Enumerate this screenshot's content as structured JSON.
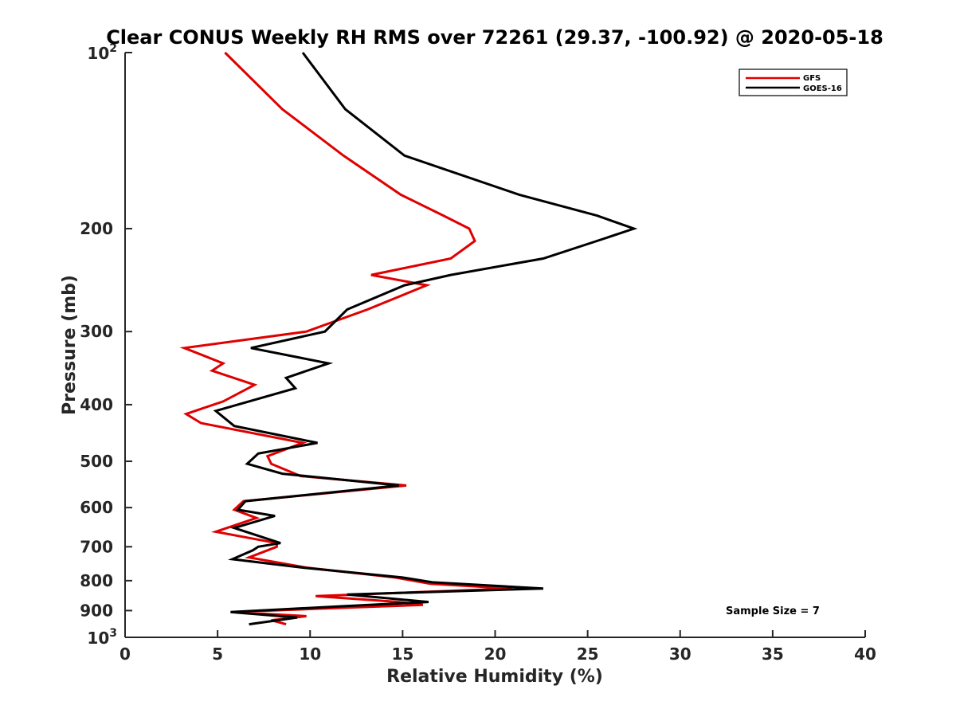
{
  "chart_data": {
    "type": "line",
    "title": "Clear CONUS Weekly RH RMS over 72261 (29.37, -100.92) @ 2020-05-18",
    "xlabel": "Relative Humidity (%)",
    "ylabel": "Pressure (mb)",
    "xlim": [
      0,
      40
    ],
    "ylim": [
      100,
      1000
    ],
    "y_scale": "log",
    "y_reversed": true,
    "grid": false,
    "legend_position": "top-right",
    "x_ticks": [
      "0",
      "5",
      "10",
      "15",
      "20",
      "25",
      "30",
      "35",
      "40"
    ],
    "y_ticks": [
      {
        "value": 100,
        "base": "10",
        "exp": "2"
      },
      {
        "value": 200,
        "label": "200"
      },
      {
        "value": 300,
        "label": "300"
      },
      {
        "value": 400,
        "label": "400"
      },
      {
        "value": 500,
        "label": "500"
      },
      {
        "value": 600,
        "label": "600"
      },
      {
        "value": 700,
        "label": "700"
      },
      {
        "value": 800,
        "label": "800"
      },
      {
        "value": 900,
        "label": "900"
      },
      {
        "value": 1000,
        "base": "10",
        "exp": "3"
      }
    ],
    "annotation": "Sample Size = 7",
    "series": [
      {
        "name": "GFS",
        "color": "#e00000",
        "points": [
          [
            5.4,
            100
          ],
          [
            8.5,
            125
          ],
          [
            11.8,
            150
          ],
          [
            14.9,
            175
          ],
          [
            17.2,
            190
          ],
          [
            18.6,
            200
          ],
          [
            18.9,
            210
          ],
          [
            17.6,
            225
          ],
          [
            13.3,
            240
          ],
          [
            16.3,
            250
          ],
          [
            13.1,
            275
          ],
          [
            9.8,
            300
          ],
          [
            3.2,
            320
          ],
          [
            5.3,
            340
          ],
          [
            4.7,
            350
          ],
          [
            7.0,
            370
          ],
          [
            5.3,
            395
          ],
          [
            3.3,
            415
          ],
          [
            4.1,
            430
          ],
          [
            9.6,
            465
          ],
          [
            7.7,
            490
          ],
          [
            7.9,
            505
          ],
          [
            9.5,
            530
          ],
          [
            15.2,
            550
          ],
          [
            6.4,
            585
          ],
          [
            5.9,
            605
          ],
          [
            7.1,
            625
          ],
          [
            4.9,
            660
          ],
          [
            8.2,
            690
          ],
          [
            8.2,
            700
          ],
          [
            6.7,
            730
          ],
          [
            9.8,
            760
          ],
          [
            14.6,
            790
          ],
          [
            16.5,
            810
          ],
          [
            20.9,
            825
          ],
          [
            10.3,
            850
          ],
          [
            14.8,
            870
          ],
          [
            16.1,
            880
          ],
          [
            11.8,
            890
          ],
          [
            5.8,
            905
          ],
          [
            9.8,
            920
          ],
          [
            7.9,
            935
          ],
          [
            8.7,
            950
          ]
        ]
      },
      {
        "name": "GOES-16",
        "color": "#000000",
        "points": [
          [
            9.6,
            100
          ],
          [
            11.9,
            125
          ],
          [
            15.1,
            150
          ],
          [
            21.3,
            175
          ],
          [
            25.5,
            190
          ],
          [
            27.5,
            200
          ],
          [
            25.5,
            210
          ],
          [
            22.6,
            225
          ],
          [
            17.6,
            240
          ],
          [
            15.1,
            250
          ],
          [
            12.0,
            275
          ],
          [
            10.8,
            300
          ],
          [
            6.8,
            320
          ],
          [
            11.0,
            340
          ],
          [
            8.7,
            360
          ],
          [
            9.2,
            375
          ],
          [
            4.9,
            410
          ],
          [
            5.9,
            435
          ],
          [
            10.4,
            465
          ],
          [
            7.2,
            485
          ],
          [
            6.6,
            505
          ],
          [
            8.5,
            525
          ],
          [
            14.8,
            550
          ],
          [
            6.5,
            585
          ],
          [
            6.1,
            605
          ],
          [
            8.1,
            620
          ],
          [
            5.9,
            650
          ],
          [
            8.4,
            690
          ],
          [
            7.2,
            700
          ],
          [
            6.9,
            710
          ],
          [
            5.8,
            735
          ],
          [
            9.6,
            760
          ],
          [
            15.0,
            790
          ],
          [
            16.6,
            805
          ],
          [
            22.6,
            825
          ],
          [
            12.0,
            845
          ],
          [
            16.4,
            870
          ],
          [
            11.6,
            885
          ],
          [
            5.7,
            905
          ],
          [
            9.3,
            925
          ],
          [
            6.7,
            950
          ]
        ]
      }
    ]
  }
}
